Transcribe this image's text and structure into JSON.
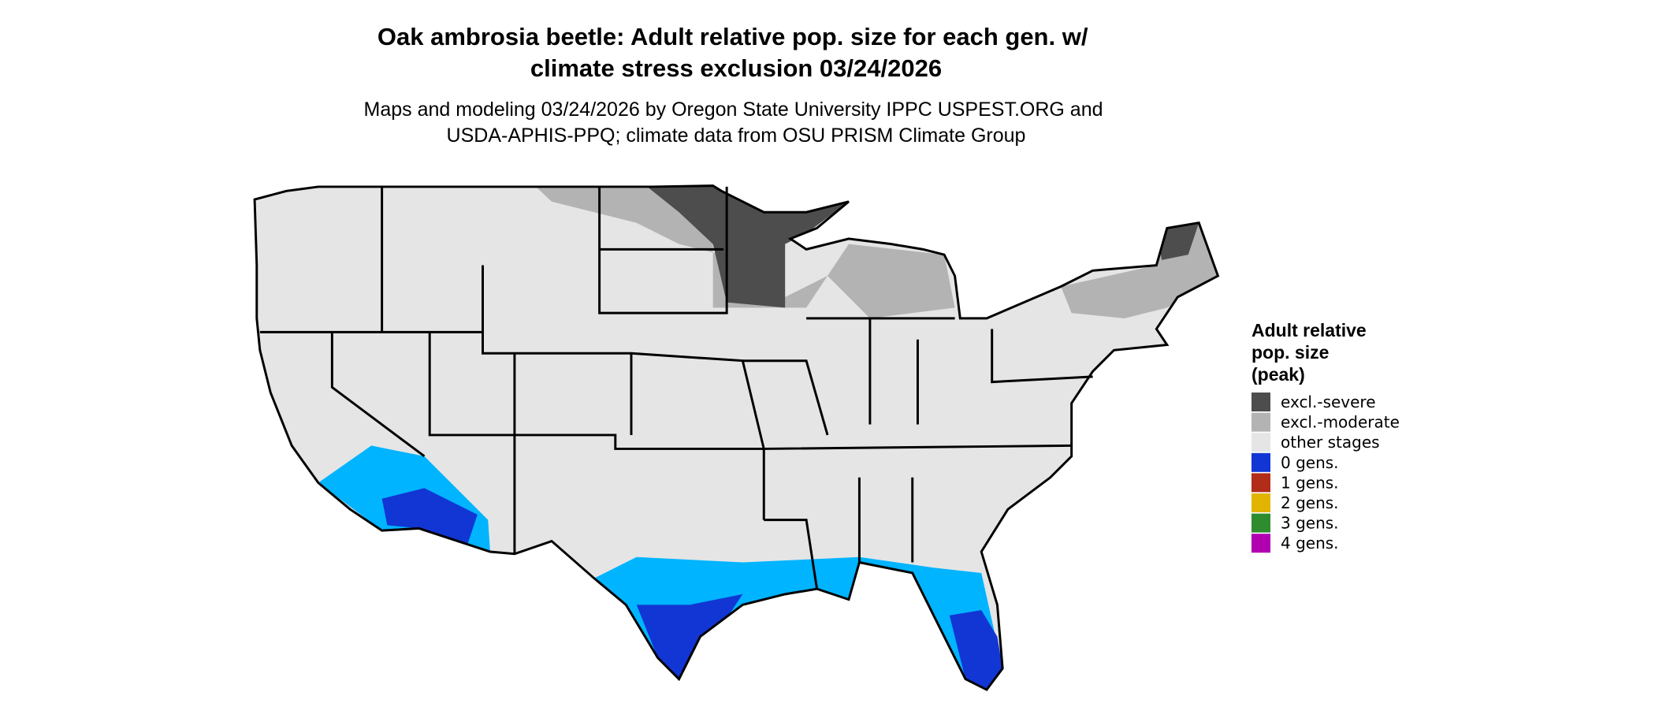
{
  "header": {
    "title": [
      "Oak ambrosia beetle: Adult relative pop. size for each gen. w/",
      "climate stress exclusion 03/24/2026"
    ],
    "subtitle": [
      "Maps and modeling 03/24/2026 by Oregon State University IPPC USPEST.ORG and",
      "USDA-APHIS-PPQ; climate data from OSU PRISM Climate Group"
    ]
  },
  "legend": {
    "title": [
      "Adult relative",
      "pop. size",
      "(peak)"
    ],
    "items": [
      {
        "label": "excl.-severe",
        "color": "#4d4d4d"
      },
      {
        "label": "excl.-moderate",
        "color": "#b3b3b3"
      },
      {
        "label": "other stages",
        "color": "#e5e5e5"
      },
      {
        "label": "0 gens.",
        "color": "#1236d4"
      },
      {
        "label": "1 gens.",
        "color": "#b22c1a"
      },
      {
        "label": "2 gens.",
        "color": "#e0b400"
      },
      {
        "label": "3 gens.",
        "color": "#2e8b2e"
      },
      {
        "label": "4 gens.",
        "color": "#b000b0"
      }
    ]
  }
}
